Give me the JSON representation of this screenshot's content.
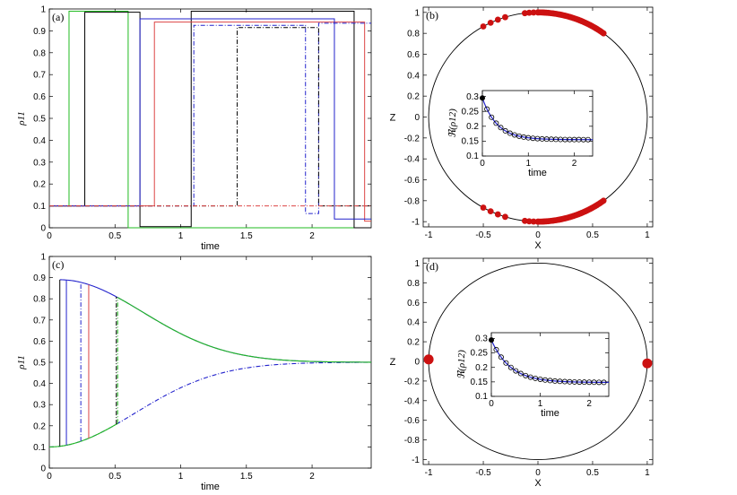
{
  "chart_data": [
    {
      "panel": "(a)",
      "type": "line",
      "xlabel": "time",
      "ylabel": "ρ11",
      "xlim": [
        0,
        2.45
      ],
      "ylim": [
        0,
        1
      ],
      "xticks": [
        0,
        0.5,
        1,
        1.5,
        2
      ],
      "xtick_labels": [
        "0",
        "0.5",
        "1",
        "1.5",
        "2"
      ],
      "yticks": [
        0,
        0.1,
        0.2,
        0.3,
        0.4,
        0.5,
        0.6,
        0.7,
        0.8,
        0.9,
        1
      ],
      "ytick_labels": [
        "0",
        "0.1",
        "0.2",
        "0.3",
        "0.4",
        "0.5",
        "0.6",
        "0.7",
        "0.8",
        "0.9",
        "1"
      ],
      "series": [
        {
          "name": "green trajectory",
          "color": "#22bb22",
          "dash": "",
          "points": [
            [
              0,
              0.1
            ],
            [
              0.15,
              0.1
            ],
            [
              0.15,
              0.99
            ],
            [
              0.6,
              0.99
            ],
            [
              0.6,
              0
            ],
            [
              2.45,
              0
            ]
          ]
        },
        {
          "name": "black trajectory",
          "color": "#000000",
          "dash": "",
          "points": [
            [
              0,
              0.1
            ],
            [
              0.27,
              0.1
            ],
            [
              0.27,
              0.985
            ],
            [
              0.69,
              0.985
            ],
            [
              0.69,
              0.005
            ],
            [
              1.08,
              0.005
            ],
            [
              1.08,
              0.99
            ],
            [
              2.32,
              0.99
            ],
            [
              2.32,
              0
            ],
            [
              2.45,
              0
            ]
          ]
        },
        {
          "name": "red trajectory",
          "color": "#dd4444",
          "dash": "",
          "points": [
            [
              0,
              0.1
            ],
            [
              0.8,
              0.1
            ],
            [
              0.8,
              0.94
            ],
            [
              2.4,
              0.94
            ],
            [
              2.4,
              0.03
            ],
            [
              2.45,
              0.03
            ]
          ]
        },
        {
          "name": "blue trajectory",
          "color": "#2222cc",
          "dash": "",
          "points": [
            [
              0,
              0.1
            ],
            [
              0.69,
              0.1
            ],
            [
              0.69,
              0.955
            ],
            [
              2.17,
              0.955
            ],
            [
              2.17,
              0.04
            ],
            [
              2.45,
              0.04
            ]
          ]
        },
        {
          "name": "blue dash-dot trajectory",
          "color": "#2222cc",
          "dash": "5,2,1,2",
          "points": [
            [
              0,
              0.1
            ],
            [
              1.1,
              0.1
            ],
            [
              1.1,
              0.925
            ],
            [
              1.95,
              0.925
            ],
            [
              1.95,
              0.065
            ],
            [
              2.05,
              0.065
            ],
            [
              2.05,
              0.935
            ],
            [
              2.45,
              0.935
            ]
          ]
        },
        {
          "name": "black dash-dot trajectory",
          "color": "#000000",
          "dash": "5,2,1,2",
          "points": [
            [
              0,
              0.1
            ],
            [
              1.43,
              0.1
            ],
            [
              1.43,
              0.915
            ],
            [
              2.05,
              0.915
            ],
            [
              2.05,
              0.1
            ],
            [
              2.45,
              0.1
            ]
          ]
        },
        {
          "name": "red dash-dot trajectory",
          "color": "#dd4444",
          "dash": "5,2,1,2",
          "points": [
            [
              0,
              0.1
            ],
            [
              2.45,
              0.1
            ]
          ]
        }
      ]
    },
    {
      "panel": "(b)",
      "type": "scatter",
      "xlabel": "X",
      "ylabel": "Z",
      "xlim": [
        -1.05,
        1.05
      ],
      "ylim": [
        -1.05,
        1.05
      ],
      "xticks": [
        -1,
        -0.5,
        0,
        0.5,
        1
      ],
      "xtick_labels": [
        "-1",
        "-0.5",
        "0",
        "0.5",
        "1"
      ],
      "yticks": [
        -1,
        -0.8,
        -0.6,
        -0.4,
        -0.2,
        0,
        0.2,
        0.4,
        0.6,
        0.8,
        1
      ],
      "ytick_labels": [
        "-1",
        "-0.8",
        "-0.6",
        "-0.4",
        "-0.2",
        "0",
        "0.2",
        "0.4",
        "0.6",
        "0.8",
        "1"
      ],
      "circle": {
        "center": [
          0,
          0
        ],
        "radius": 1
      },
      "point_color": "#cc1111",
      "point_groups": [
        {
          "x_from": -0.5,
          "x_to": -0.3,
          "count": 4,
          "signs": [
            1,
            -1
          ]
        },
        {
          "x_from": -0.12,
          "x_to": 0.0,
          "count": 4,
          "signs": [
            1,
            -1
          ]
        },
        {
          "x_from": 0.0,
          "x_to": 0.6,
          "count": 40,
          "signs": [
            1,
            -1
          ]
        }
      ],
      "inset": {
        "xlabel": "time",
        "ylabel": "ℜ(ρ12)",
        "xlim": [
          0,
          2.4
        ],
        "ylim": [
          0.1,
          0.32
        ],
        "xticks": [
          0,
          1,
          2
        ],
        "xtick_labels": [
          "0",
          "1",
          "2"
        ],
        "yticks": [
          0.1,
          0.15,
          0.2,
          0.25,
          0.3
        ],
        "ytick_labels": [
          "0.1",
          "0.15",
          "0.2",
          "0.25",
          "0.3"
        ],
        "curve": {
          "start": 0.295,
          "end": 0.155,
          "rate": 3.1
        },
        "marker_times": [
          0,
          0.1,
          0.2,
          0.3,
          0.4,
          0.5,
          0.6,
          0.7,
          0.8,
          0.9,
          1.0,
          1.1,
          1.2,
          1.3,
          1.4,
          1.5,
          1.6,
          1.7,
          1.8,
          1.9,
          2.0,
          2.1,
          2.2,
          2.3
        ]
      }
    },
    {
      "panel": "(c)",
      "type": "line",
      "xlabel": "time",
      "ylabel": "ρ11",
      "xlim": [
        0,
        2.45
      ],
      "ylim": [
        0,
        1
      ],
      "xticks": [
        0,
        0.5,
        1,
        1.5,
        2
      ],
      "xtick_labels": [
        "0",
        "0.5",
        "1",
        "1.5",
        "2"
      ],
      "yticks": [
        0,
        0.1,
        0.2,
        0.3,
        0.4,
        0.5,
        0.6,
        0.7,
        0.8,
        0.9,
        1
      ],
      "ytick_labels": [
        "0",
        "0.1",
        "0.2",
        "0.3",
        "0.4",
        "0.5",
        "0.6",
        "0.7",
        "0.8",
        "0.9",
        "1"
      ],
      "upper_branch": {
        "model": "0.5 + 0.39*exp(-a*(t-0.08)^2)",
        "start_t": 0.08,
        "start": 0.89,
        "plateau": 0.5,
        "a": 1.25,
        "color": "#2222cc"
      },
      "lower_branch": {
        "model": "0.5 - 0.4*exp(-1.2*t^2)",
        "plateau": 0.5,
        "amp": 0.4,
        "a": 1.2,
        "color": "#2222cc",
        "dash": "5,2,1,2"
      },
      "green_branch": {
        "color": "#22bb22",
        "switch_t": 0.52
      },
      "jumps": [
        {
          "t": 0.08,
          "color": "#000000",
          "dash": ""
        },
        {
          "t": 0.13,
          "color": "#2222cc",
          "dash": ""
        },
        {
          "t": 0.24,
          "color": "#2222cc",
          "dash": "5,2,1,2"
        },
        {
          "t": 0.3,
          "color": "#dd4444",
          "dash": ""
        },
        {
          "t": 0.51,
          "color": "#000000",
          "dash": "5,2,1,2"
        },
        {
          "t": 0.52,
          "color": "#22bb22",
          "dash": "5,2,1,2"
        }
      ]
    },
    {
      "panel": "(d)",
      "type": "scatter",
      "xlabel": "X",
      "ylabel": "Z",
      "xlim": [
        -1.05,
        1.05
      ],
      "ylim": [
        -1.05,
        1.05
      ],
      "xticks": [
        -1,
        -0.5,
        0,
        0.5,
        1
      ],
      "xtick_labels": [
        "-1",
        "-0.5",
        "0",
        "0.5",
        "1"
      ],
      "yticks": [
        -1,
        -0.8,
        -0.6,
        -0.4,
        -0.2,
        0,
        0.2,
        0.4,
        0.6,
        0.8,
        1
      ],
      "ytick_labels": [
        "-1",
        "-0.8",
        "-0.6",
        "-0.4",
        "-0.2",
        "0",
        "0.2",
        "0.4",
        "0.6",
        "0.8",
        "1"
      ],
      "circle": {
        "center": [
          0,
          0
        ],
        "radius": 1
      },
      "point_color": "#cc1111",
      "points": [
        [
          -1,
          0.02
        ],
        [
          1,
          -0.02
        ]
      ],
      "inset": {
        "xlabel": "time",
        "ylabel": "ℜ(ρ12)",
        "xlim": [
          0,
          2.4
        ],
        "ylim": [
          0.1,
          0.32
        ],
        "xticks": [
          0,
          1,
          2
        ],
        "xtick_labels": [
          "0",
          "1",
          "2"
        ],
        "yticks": [
          0.1,
          0.15,
          0.2,
          0.25,
          0.3
        ],
        "ytick_labels": [
          "0.1",
          "0.15",
          "0.2",
          "0.25",
          "0.3"
        ],
        "curve": {
          "start": 0.295,
          "end": 0.148,
          "rate": 2.6
        },
        "marker_times": [
          0,
          0.1,
          0.2,
          0.3,
          0.4,
          0.5,
          0.6,
          0.7,
          0.8,
          0.9,
          1.0,
          1.1,
          1.2,
          1.3,
          1.4,
          1.5,
          1.6,
          1.7,
          1.8,
          1.9,
          2.0,
          2.1,
          2.2,
          2.3
        ]
      }
    }
  ]
}
